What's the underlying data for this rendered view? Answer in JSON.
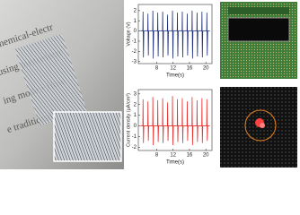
{
  "photo_texts": [
    "chemical-electr",
    "using piezoelectr",
    "ing mode.• How",
    "e traditional car"
  ],
  "chart_data": [
    {
      "type": "line",
      "xlabel": "Time(s)",
      "ylabel": "Voltage (V)",
      "color": "#1f2f7a",
      "xlim": [
        3.5,
        21.5
      ],
      "xticks": [
        8,
        12,
        16,
        20
      ],
      "ylim": [
        -3.2,
        2.6
      ],
      "yticks": [
        2,
        1,
        0,
        -1,
        -2,
        -3
      ],
      "x": [
        4.0,
        4.6,
        4.65,
        4.75,
        4.85,
        5.8,
        5.85,
        5.95,
        6.05,
        7.0,
        7.05,
        7.15,
        7.25,
        8.2,
        8.25,
        8.35,
        8.45,
        9.4,
        9.45,
        9.55,
        9.65,
        10.6,
        10.65,
        10.75,
        10.85,
        11.8,
        11.85,
        11.95,
        12.05,
        13.0,
        13.05,
        13.15,
        13.25,
        14.2,
        14.25,
        14.35,
        14.45,
        15.4,
        15.45,
        15.55,
        15.65,
        16.6,
        16.65,
        16.75,
        16.85,
        17.8,
        17.85,
        17.95,
        18.05,
        19.0,
        19.05,
        19.15,
        19.25,
        20.2,
        20.25,
        20.35,
        20.45,
        21.0
      ],
      "values": [
        0,
        0,
        1.9,
        -2.6,
        0,
        0,
        1.7,
        -2.4,
        0,
        0,
        2.0,
        -2.7,
        0,
        0,
        1.8,
        -2.5,
        0,
        0,
        1.9,
        -2.6,
        0,
        0,
        1.6,
        -2.4,
        0,
        0,
        2.0,
        -2.7,
        0,
        0,
        1.8,
        -2.5,
        0,
        0,
        1.9,
        -2.6,
        0,
        0,
        1.7,
        -2.4,
        0,
        0,
        2.0,
        -2.7,
        0,
        0,
        1.8,
        -2.5,
        0,
        0,
        1.9,
        -2.6,
        0,
        0,
        1.8,
        -2.4,
        0,
        0
      ]
    },
    {
      "type": "line",
      "xlabel": "Time(s)",
      "ylabel": "Current density (μA/cm²)",
      "color": "#e8322f",
      "xlim": [
        3.5,
        21.5
      ],
      "xticks": [
        8,
        12,
        16,
        20
      ],
      "ylim": [
        -2.3,
        3.4
      ],
      "yticks": [
        3,
        2,
        1,
        0,
        -1,
        -2
      ],
      "x": [
        4.0,
        4.6,
        4.65,
        4.75,
        4.85,
        5.8,
        5.85,
        5.95,
        6.05,
        7.0,
        7.05,
        7.15,
        7.25,
        8.2,
        8.25,
        8.35,
        8.45,
        9.4,
        9.45,
        9.55,
        9.65,
        10.6,
        10.65,
        10.75,
        10.85,
        11.8,
        11.85,
        11.95,
        12.05,
        13.0,
        13.05,
        13.15,
        13.25,
        14.2,
        14.25,
        14.35,
        14.45,
        15.4,
        15.45,
        15.55,
        15.65,
        16.6,
        16.65,
        16.75,
        16.85,
        17.8,
        17.85,
        17.95,
        18.05,
        19.0,
        19.05,
        19.15,
        19.25,
        20.2,
        20.25,
        20.35,
        20.45,
        21.0
      ],
      "values": [
        0,
        0,
        2.5,
        -1.6,
        0,
        0,
        2.3,
        -1.4,
        0,
        0,
        2.7,
        -1.8,
        0,
        0,
        2.4,
        -1.5,
        0,
        0,
        2.6,
        -1.6,
        0,
        0,
        2.2,
        -1.4,
        0,
        0,
        2.8,
        -1.8,
        0,
        0,
        2.5,
        -1.5,
        0,
        0,
        2.6,
        -1.6,
        0,
        0,
        2.3,
        -1.4,
        0,
        0,
        2.7,
        -1.8,
        0,
        0,
        2.4,
        -1.5,
        0,
        0,
        2.6,
        -1.6,
        0,
        0,
        2.5,
        -1.4,
        0,
        0
      ]
    }
  ]
}
